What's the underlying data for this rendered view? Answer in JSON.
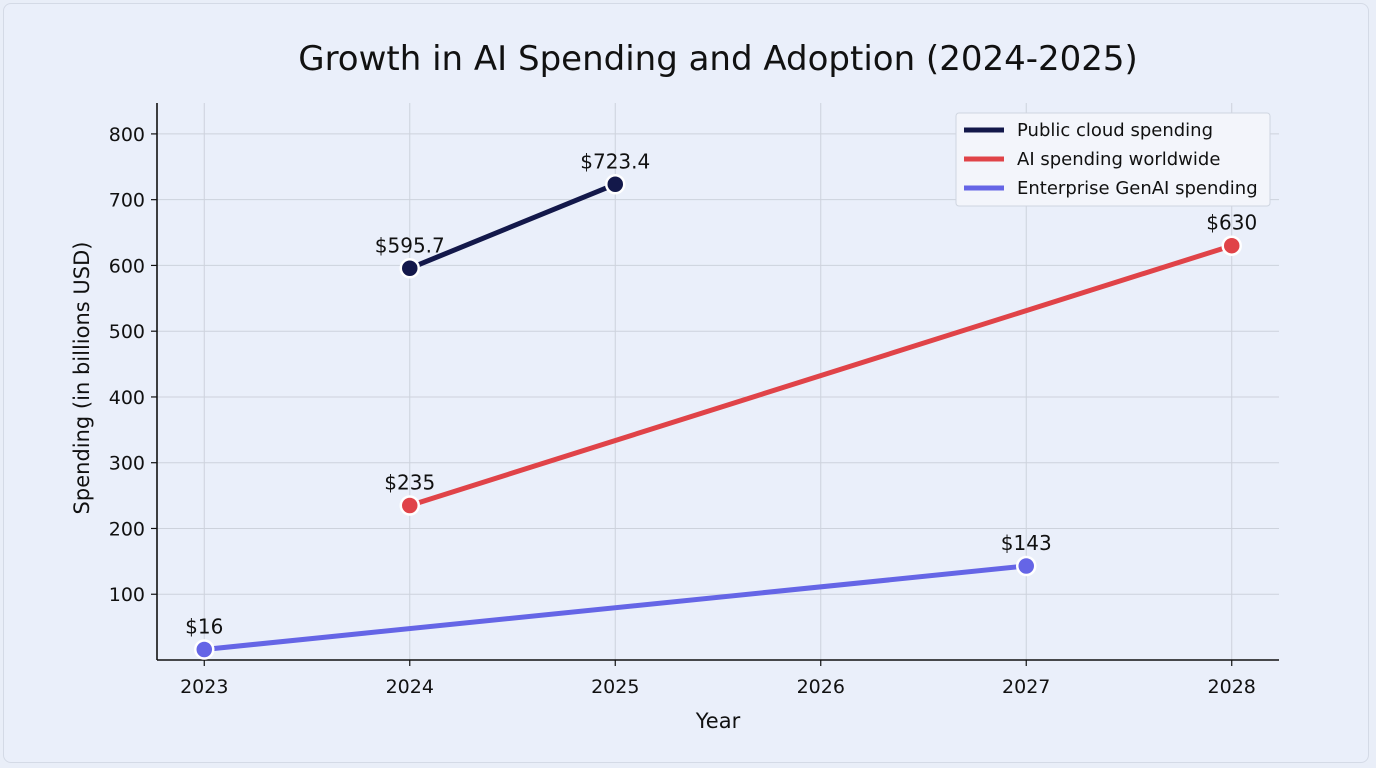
{
  "chart_data": {
    "type": "line",
    "title": "Growth in AI Spending and Adoption (2024-2025)",
    "xlabel": "Year",
    "ylabel": "Spending (in billions USD)",
    "x_ticks": [
      "2023",
      "2024",
      "2025",
      "2026",
      "2027",
      "2028"
    ],
    "y_ticks": [
      "100",
      "200",
      "300",
      "400",
      "500",
      "600",
      "700",
      "800"
    ],
    "xlim": [
      2022.77,
      2028.23
    ],
    "ylim": [
      0,
      847
    ],
    "grid": true,
    "legend_position": "top-right",
    "series": [
      {
        "name": "Public cloud spending",
        "color": "#13184a",
        "points": [
          {
            "x": 2024,
            "y": 595.7,
            "label": "$595.7"
          },
          {
            "x": 2025,
            "y": 723.4,
            "label": "$723.4"
          }
        ]
      },
      {
        "name": "AI spending worldwide",
        "color": "#e04348",
        "points": [
          {
            "x": 2024,
            "y": 235,
            "label": "$235"
          },
          {
            "x": 2028,
            "y": 630,
            "label": "$630"
          }
        ]
      },
      {
        "name": "Enterprise GenAI spending",
        "color": "#6565e6",
        "points": [
          {
            "x": 2023,
            "y": 16,
            "label": "$16"
          },
          {
            "x": 2027,
            "y": 143,
            "label": "$143"
          }
        ]
      }
    ]
  }
}
